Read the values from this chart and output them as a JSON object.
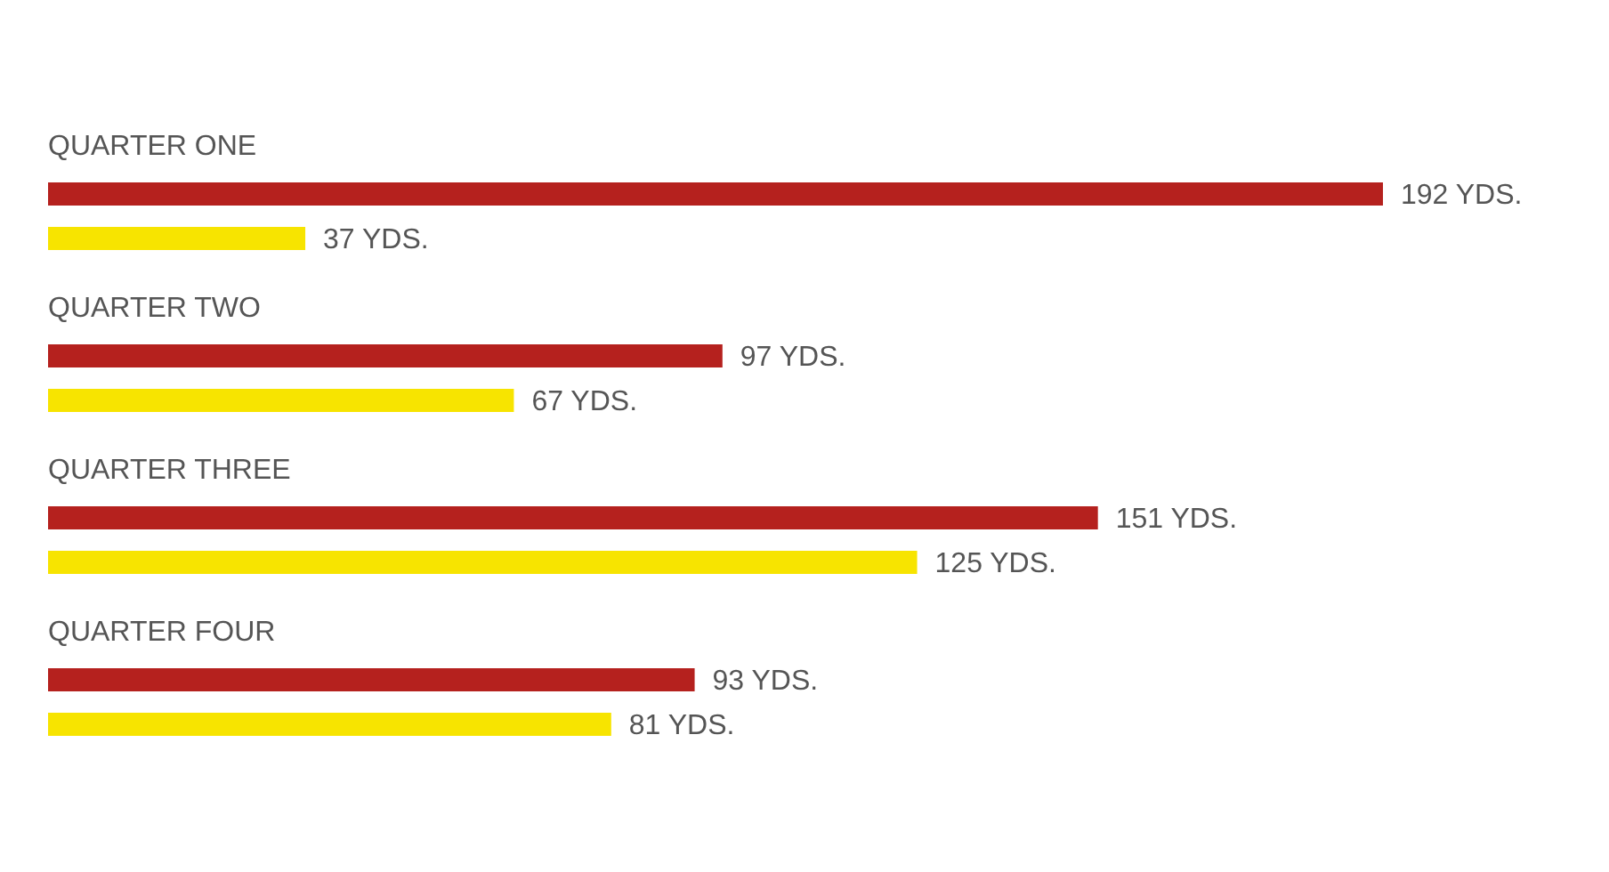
{
  "chart_data": {
    "type": "bar",
    "orientation": "horizontal",
    "tick_labels": "y",
    "categories": [
      "QUARTER ONE",
      "QUARTER TWO",
      "QUARTER THREE",
      "QUARTER FOUR"
    ],
    "series": [
      {
        "color": "#b5211e",
        "values": [
          192,
          97,
          151,
          93
        ],
        "value_labels": [
          "192 YDS.",
          "97 YDS.",
          "151 YDS.",
          "93 YDS."
        ]
      },
      {
        "color": "#f7e400",
        "values": [
          37,
          67,
          125,
          81
        ],
        "value_labels": [
          "37 YDS.",
          "67 YDS.",
          "125 YDS.",
          "81 YDS."
        ]
      }
    ]
  }
}
